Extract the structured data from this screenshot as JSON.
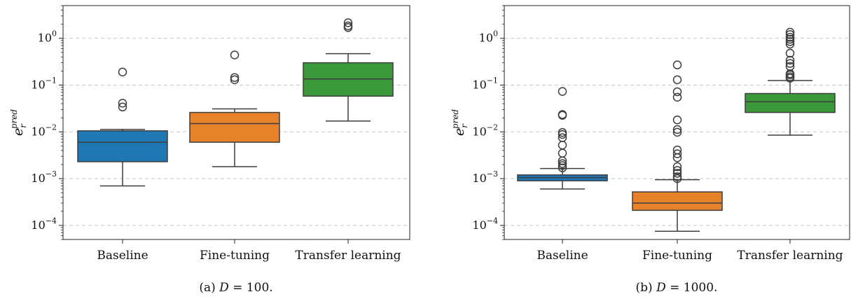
{
  "chart_data": [
    {
      "type": "box",
      "caption": "(a) D = 100.",
      "ylabel": "e_r^pred",
      "yscale": "log",
      "ylim": [
        5e-05,
        5
      ],
      "grid": "horizontal dashed at major ticks",
      "yticks": [
        {
          "value": 0.0001,
          "base": "10",
          "exp": "−4"
        },
        {
          "value": 0.001,
          "base": "10",
          "exp": "−3"
        },
        {
          "value": 0.01,
          "base": "10",
          "exp": "−2"
        },
        {
          "value": 0.1,
          "base": "10",
          "exp": "−1"
        },
        {
          "value": 1,
          "base": "10",
          "exp": "0"
        }
      ],
      "categories": [
        "Baseline",
        "Fine-tuning",
        "Transfer learning"
      ],
      "boxes": [
        {
          "name": "Baseline",
          "color": "#1f77b4",
          "whisker_low": 0.0007,
          "q1": 0.0023,
          "median": 0.006,
          "q3": 0.0105,
          "whisker_high": 0.0113,
          "outliers": [
            0.034,
            0.041,
            0.19
          ]
        },
        {
          "name": "Fine-tuning",
          "color": "#e8822a",
          "whisker_low": 0.0018,
          "q1": 0.006,
          "median": 0.015,
          "q3": 0.026,
          "whisker_high": 0.031,
          "outliers": [
            0.13,
            0.145,
            0.44
          ]
        },
        {
          "name": "Transfer learning",
          "color": "#3a9a3a",
          "whisker_low": 0.017,
          "q1": 0.058,
          "median": 0.135,
          "q3": 0.3,
          "whisker_high": 0.47,
          "outliers": [
            1.7,
            1.85,
            2.15
          ]
        }
      ]
    },
    {
      "type": "box",
      "caption": "(b) D = 1000.",
      "ylabel": "e_r^pred",
      "yscale": "log",
      "ylim": [
        5e-05,
        5
      ],
      "grid": "horizontal dashed at major ticks",
      "yticks": [
        {
          "value": 0.0001,
          "base": "10",
          "exp": "−4"
        },
        {
          "value": 0.001,
          "base": "10",
          "exp": "−3"
        },
        {
          "value": 0.01,
          "base": "10",
          "exp": "−2"
        },
        {
          "value": 0.1,
          "base": "10",
          "exp": "−1"
        },
        {
          "value": 1,
          "base": "10",
          "exp": "0"
        }
      ],
      "categories": [
        "Baseline",
        "Fine-tuning",
        "Transfer learning"
      ],
      "boxes": [
        {
          "name": "Baseline",
          "color": "#1f77b4",
          "whisker_low": 0.0006,
          "q1": 0.0009,
          "median": 0.00105,
          "q3": 0.0012,
          "whisker_high": 0.00165,
          "outliers": [
            0.0017,
            0.0019,
            0.0021,
            0.0024,
            0.0035,
            0.0052,
            0.0075,
            0.0088,
            0.0097,
            0.0225,
            0.0235,
            0.073
          ]
        },
        {
          "name": "Fine-tuning",
          "color": "#e8822a",
          "whisker_low": 7.5e-05,
          "q1": 0.00021,
          "median": 0.0003,
          "q3": 0.00052,
          "whisker_high": 0.00095,
          "outliers": [
            0.001,
            0.0011,
            0.0013,
            0.0015,
            0.0018,
            0.0028,
            0.0034,
            0.0041,
            0.0098,
            0.0112,
            0.018,
            0.055,
            0.072,
            0.13,
            0.27
          ]
        },
        {
          "name": "Transfer learning",
          "color": "#3a9a3a",
          "whisker_low": 0.0085,
          "q1": 0.026,
          "median": 0.044,
          "q3": 0.066,
          "whisker_high": 0.125,
          "outliers": [
            0.14,
            0.15,
            0.165,
            0.175,
            0.25,
            0.29,
            0.34,
            0.48,
            0.75,
            0.85,
            0.95,
            1.05,
            1.2,
            1.35
          ]
        }
      ]
    }
  ]
}
